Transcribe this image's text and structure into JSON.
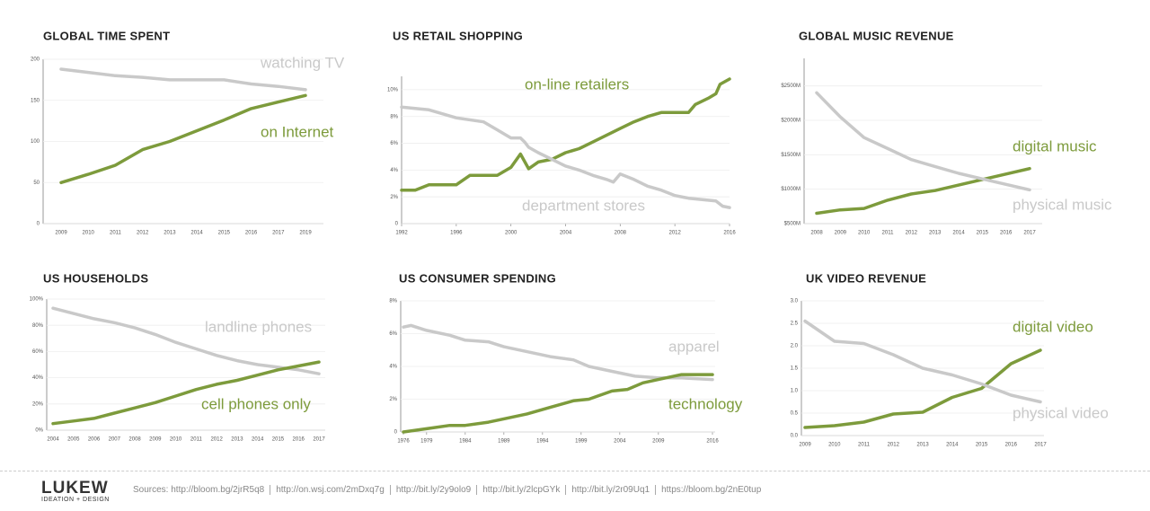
{
  "chart_data": [
    {
      "type": "line",
      "title": "GLOBAL TIME SPENT",
      "categories": [
        "2009",
        "2010",
        "2011",
        "2012",
        "2013",
        "2014",
        "2015",
        "2016",
        "2017",
        "2019"
      ],
      "series": [
        {
          "name": "watching TV",
          "color": "#c9c9c9",
          "values": [
            188,
            184,
            180,
            178,
            175,
            175,
            175,
            170,
            167,
            163
          ]
        },
        {
          "name": "on Internet",
          "color": "#7d9b3c",
          "values": [
            50,
            60,
            71,
            90,
            100,
            113,
            126,
            140,
            148,
            156
          ]
        }
      ],
      "ylim": [
        0,
        200
      ],
      "yticks": [
        0,
        50,
        100,
        150,
        200
      ]
    },
    {
      "type": "line",
      "title": "US RETAIL SHOPPING",
      "xlim": [
        1992,
        2016
      ],
      "xticks": [
        1992,
        1996,
        2000,
        2004,
        2008,
        2012,
        2016
      ],
      "series": [
        {
          "name": "on-line retailers",
          "color": "#7d9b3c",
          "x": [
            1992,
            1993,
            1994,
            1995,
            1996,
            1997,
            1998,
            1999,
            2000,
            2000.7,
            2001.3,
            2002,
            2003,
            2004,
            2005,
            2006,
            2007,
            2008,
            2009,
            2010,
            2011,
            2012,
            2013,
            2013.5,
            2014.5,
            2015,
            2015.3,
            2016
          ],
          "values": [
            2.5,
            2.5,
            2.9,
            2.9,
            2.9,
            3.6,
            3.6,
            3.6,
            4.2,
            5.2,
            4.1,
            4.6,
            4.8,
            5.3,
            5.6,
            6.1,
            6.6,
            7.1,
            7.6,
            8.0,
            8.3,
            8.3,
            8.3,
            8.9,
            9.4,
            9.7,
            10.4,
            10.8
          ]
        },
        {
          "name": "department stores",
          "color": "#c9c9c9",
          "x": [
            1992,
            1994,
            1996,
            1998,
            1999,
            2000,
            2000.7,
            2001,
            2001.3,
            2002,
            2003,
            2004,
            2005,
            2006,
            2007,
            2007.5,
            2008,
            2009,
            2010,
            2011,
            2012,
            2013,
            2014,
            2015,
            2015.5,
            2016
          ],
          "values": [
            8.7,
            8.5,
            7.9,
            7.6,
            7.0,
            6.4,
            6.4,
            6.1,
            5.7,
            5.3,
            4.8,
            4.3,
            4.0,
            3.6,
            3.3,
            3.1,
            3.7,
            3.3,
            2.8,
            2.5,
            2.1,
            1.9,
            1.8,
            1.7,
            1.3,
            1.2
          ]
        }
      ],
      "ylim": [
        0,
        11
      ],
      "yticks": [
        0,
        {
          "value": 2,
          "label": "2%"
        },
        {
          "value": 4,
          "label": "4%"
        },
        {
          "value": 6,
          "label": "6%"
        },
        {
          "value": 8,
          "label": "8%"
        },
        {
          "value": 10,
          "label": "10%"
        }
      ]
    },
    {
      "type": "line",
      "title": "GLOBAL MUSIC REVENUE",
      "categories": [
        "2008",
        "2009",
        "2010",
        "2011",
        "2012",
        "2013",
        "2014",
        "2015",
        "2016",
        "2017"
      ],
      "series": [
        {
          "name": "digital music",
          "color": "#7d9b3c",
          "values": [
            650,
            700,
            720,
            840,
            930,
            980,
            1060,
            1140,
            1220,
            1300
          ]
        },
        {
          "name": "physical music",
          "color": "#c9c9c9",
          "values": [
            2400,
            2050,
            1750,
            1590,
            1430,
            1330,
            1230,
            1150,
            1070,
            990
          ]
        }
      ],
      "ylim": [
        500,
        2900
      ],
      "yticks": [
        {
          "value": 500,
          "label": "$500M"
        },
        {
          "value": 1000,
          "label": "$1000M"
        },
        {
          "value": 1500,
          "label": "$1500M"
        },
        {
          "value": 2000,
          "label": "$2000M"
        },
        {
          "value": 2500,
          "label": "$2500M"
        }
      ]
    },
    {
      "type": "line",
      "title": "US HOUSEHOLDS",
      "categories": [
        "2004",
        "2005",
        "2006",
        "2007",
        "2008",
        "2009",
        "2010",
        "2011",
        "2012",
        "2013",
        "2014",
        "2015",
        "2016",
        "2017"
      ],
      "series": [
        {
          "name": "landline phones",
          "color": "#c9c9c9",
          "values": [
            93,
            89,
            85,
            82,
            78,
            73,
            67,
            62,
            57,
            53,
            50,
            48,
            46,
            43
          ]
        },
        {
          "name": "cell phones only",
          "color": "#7d9b3c",
          "values": [
            5,
            7,
            9,
            13,
            17,
            21,
            26,
            31,
            35,
            38,
            42,
            46,
            49,
            52
          ]
        }
      ],
      "ylim": [
        0,
        100
      ],
      "yticks": [
        {
          "value": 0,
          "label": "0%"
        },
        {
          "value": 20,
          "label": "20%"
        },
        {
          "value": 40,
          "label": "40%"
        },
        {
          "value": 60,
          "label": "60%"
        },
        {
          "value": 80,
          "label": "80%"
        },
        {
          "value": 100,
          "label": "100%"
        }
      ]
    },
    {
      "type": "line",
      "title": "US CONSUMER SPENDING",
      "xlim": [
        1976,
        2016
      ],
      "xticks": [
        1976,
        1979,
        1984,
        1989,
        1994,
        1999,
        2004,
        2009,
        2016
      ],
      "series": [
        {
          "name": "apparel",
          "color": "#c9c9c9",
          "x": [
            1976,
            1977,
            1979,
            1982,
            1984,
            1987,
            1989,
            1992,
            1995,
            1998,
            2000,
            2003,
            2006,
            2009,
            2012,
            2016
          ],
          "values": [
            6.4,
            6.5,
            6.2,
            5.9,
            5.6,
            5.5,
            5.2,
            4.9,
            4.6,
            4.4,
            4.0,
            3.7,
            3.4,
            3.3,
            3.3,
            3.2
          ]
        },
        {
          "name": "technology",
          "color": "#7d9b3c",
          "x": [
            1976,
            1979,
            1982,
            1984,
            1987,
            1989,
            1992,
            1995,
            1998,
            2000,
            2003,
            2005,
            2007,
            2009,
            2012,
            2016
          ],
          "values": [
            0,
            0.2,
            0.4,
            0.4,
            0.6,
            0.8,
            1.1,
            1.5,
            1.9,
            2.0,
            2.5,
            2.6,
            3.0,
            3.2,
            3.5,
            3.5
          ]
        }
      ],
      "ylim": [
        0,
        8
      ],
      "yticks": [
        0,
        {
          "value": 2,
          "label": "2%"
        },
        {
          "value": 4,
          "label": "4%"
        },
        {
          "value": 6,
          "label": "6%"
        },
        {
          "value": 8,
          "label": "8%"
        }
      ]
    },
    {
      "type": "line",
      "title": "UK VIDEO REVENUE",
      "categories": [
        "2009",
        "2010",
        "2011",
        "2012",
        "2013",
        "2014",
        "2015",
        "2016",
        "2017"
      ],
      "series": [
        {
          "name": "digital video",
          "color": "#7d9b3c",
          "values": [
            0.18,
            0.22,
            0.3,
            0.48,
            0.52,
            0.85,
            1.05,
            1.6,
            1.9
          ]
        },
        {
          "name": "physical video",
          "color": "#c9c9c9",
          "values": [
            2.55,
            2.1,
            2.05,
            1.8,
            1.5,
            1.35,
            1.15,
            0.9,
            0.75
          ]
        }
      ],
      "ylim": [
        0,
        3.0
      ],
      "yticks": [
        {
          "value": 0,
          "label": "0.0"
        },
        0.5,
        {
          "value": 1,
          "label": "1.0"
        },
        1.5,
        {
          "value": 2,
          "label": "2.0"
        },
        2.5,
        {
          "value": 3,
          "label": "3.0"
        }
      ]
    }
  ],
  "footer": {
    "logo": "LUKEW",
    "tagline": "IDEATION + DESIGN",
    "sources_label": "Sources:",
    "sources": [
      "http://bloom.bg/2jrR5q8",
      "http://on.wsj.com/2mDxq7g",
      "http://bit.ly/2y9olo9",
      "http://bit.ly/2lcpGYk",
      "http://bit.ly/2r09Uq1",
      "https://bloom.bg/2nE0tup"
    ]
  }
}
